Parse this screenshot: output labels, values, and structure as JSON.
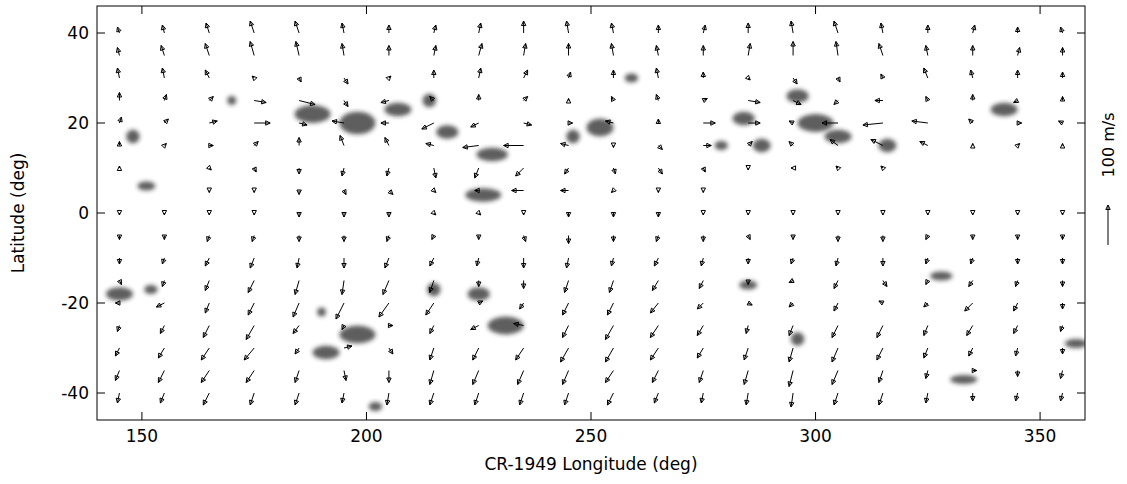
{
  "chart_data": {
    "type": "vector_field",
    "xlabel": "CR-1949 Longitude  (deg)",
    "ylabel": "Latitude  (deg)",
    "xlim": [
      140,
      360
    ],
    "ylim": [
      -46,
      46
    ],
    "xticks": [
      150,
      200,
      250,
      300,
      350
    ],
    "yticks": [
      -40,
      -20,
      0,
      20,
      40
    ],
    "scale": {
      "value": 100,
      "label": "100 m/s"
    },
    "x": [
      145,
      155,
      165,
      175,
      185,
      195,
      205,
      215,
      225,
      235,
      245,
      255,
      265,
      275,
      285,
      295,
      305,
      315,
      325,
      335,
      345,
      355
    ],
    "y": [
      40,
      35,
      30,
      25,
      20,
      15,
      10,
      5,
      0,
      -5,
      -10,
      -15,
      -20,
      -25,
      -30,
      -35,
      -40
    ],
    "u": [
      [
        -5,
        -5,
        -8,
        -10,
        -10,
        -5,
        0,
        5,
        5,
        0,
        -5,
        -5,
        0,
        5,
        0,
        -5,
        -10,
        -5,
        0,
        5,
        0,
        -5
      ],
      [
        -5,
        -8,
        -10,
        -10,
        -8,
        -5,
        0,
        5,
        8,
        5,
        0,
        -5,
        -5,
        0,
        5,
        0,
        -5,
        -10,
        -5,
        0,
        5,
        0
      ],
      [
        -5,
        -5,
        -10,
        -5,
        5,
        10,
        5,
        0,
        5,
        10,
        5,
        0,
        -5,
        0,
        5,
        10,
        5,
        -5,
        -10,
        -5,
        0,
        0
      ],
      [
        0,
        5,
        10,
        30,
        40,
        10,
        -20,
        -10,
        0,
        10,
        0,
        -5,
        -5,
        10,
        30,
        20,
        -10,
        -20,
        -5,
        0,
        -10,
        0
      ],
      [
        5,
        10,
        20,
        40,
        20,
        -30,
        -20,
        -30,
        -20,
        20,
        10,
        -20,
        0,
        30,
        30,
        -10,
        -40,
        -50,
        -40,
        -10,
        10,
        -10
      ],
      [
        0,
        5,
        10,
        10,
        0,
        -10,
        -10,
        -20,
        -40,
        -50,
        -20,
        0,
        10,
        20,
        10,
        -10,
        -20,
        -30,
        -20,
        0,
        5,
        0
      ],
      [
        0,
        0,
        5,
        5,
        0,
        -5,
        -5,
        5,
        -10,
        -20,
        -10,
        5,
        10,
        5,
        0,
        -5,
        -5,
        -5,
        0,
        0,
        0,
        0
      ],
      [
        0,
        0,
        0,
        0,
        0,
        5,
        10,
        5,
        -10,
        -30,
        -20,
        -5,
        0,
        0,
        0,
        0,
        0,
        0,
        0,
        0,
        0,
        0
      ],
      [
        0,
        0,
        0,
        0,
        0,
        0,
        0,
        5,
        5,
        0,
        0,
        0,
        0,
        0,
        0,
        0,
        0,
        0,
        0,
        0,
        0,
        0
      ],
      [
        0,
        0,
        -5,
        -5,
        0,
        0,
        -5,
        -5,
        0,
        5,
        0,
        0,
        -5,
        0,
        5,
        0,
        0,
        0,
        -5,
        0,
        0,
        0
      ],
      [
        0,
        -5,
        -10,
        -10,
        -5,
        0,
        -10,
        -10,
        -5,
        0,
        -5,
        -5,
        -10,
        -5,
        0,
        -5,
        -5,
        0,
        -5,
        -5,
        0,
        0
      ],
      [
        5,
        -5,
        -10,
        -15,
        -10,
        -5,
        -15,
        -10,
        0,
        0,
        -10,
        -10,
        -15,
        -10,
        0,
        -10,
        -10,
        10,
        -5,
        -10,
        -5,
        0
      ],
      [
        -10,
        -20,
        -10,
        -15,
        -15,
        -20,
        -25,
        -20,
        10,
        -10,
        -15,
        -15,
        -20,
        -15,
        10,
        -10,
        -10,
        -10,
        -10,
        -20,
        -10,
        0
      ],
      [
        -5,
        -10,
        -15,
        -20,
        -15,
        -5,
        10,
        -10,
        -20,
        -25,
        -15,
        -20,
        -20,
        -15,
        -5,
        -10,
        -15,
        -15,
        -10,
        -15,
        -10,
        -5
      ],
      [
        -10,
        -15,
        -20,
        -25,
        -10,
        20,
        10,
        -10,
        -15,
        -20,
        -20,
        -20,
        -20,
        -15,
        -10,
        -10,
        -15,
        -15,
        -10,
        -10,
        -5,
        0
      ],
      [
        -10,
        -15,
        -20,
        -20,
        -10,
        5,
        0,
        -10,
        -15,
        -15,
        -15,
        -20,
        -15,
        -10,
        -10,
        -10,
        -15,
        -10,
        -5,
        10,
        0,
        -5
      ],
      [
        -5,
        -10,
        -15,
        -10,
        -10,
        -5,
        -5,
        -10,
        -10,
        -10,
        -10,
        -15,
        -10,
        -5,
        -5,
        -5,
        -10,
        -10,
        -5,
        0,
        -5,
        -5
      ]
    ],
    "v": [
      [
        15,
        20,
        25,
        30,
        30,
        25,
        20,
        20,
        25,
        30,
        30,
        25,
        20,
        20,
        25,
        30,
        30,
        25,
        20,
        20,
        15,
        15
      ],
      [
        20,
        25,
        30,
        35,
        35,
        30,
        25,
        25,
        30,
        30,
        30,
        30,
        25,
        25,
        30,
        35,
        35,
        30,
        25,
        25,
        20,
        20
      ],
      [
        25,
        25,
        20,
        5,
        -10,
        -15,
        5,
        20,
        25,
        20,
        15,
        20,
        25,
        15,
        -5,
        -15,
        -10,
        10,
        25,
        20,
        20,
        15
      ],
      [
        20,
        15,
        10,
        -5,
        -10,
        -15,
        -5,
        10,
        15,
        10,
        5,
        10,
        15,
        5,
        -5,
        -10,
        -10,
        0,
        10,
        15,
        -5,
        10
      ],
      [
        15,
        10,
        5,
        0,
        -5,
        5,
        0,
        -15,
        -10,
        -5,
        0,
        5,
        10,
        0,
        0,
        5,
        0,
        -5,
        5,
        10,
        0,
        5
      ],
      [
        10,
        5,
        0,
        10,
        20,
        25,
        20,
        5,
        -5,
        0,
        5,
        -5,
        -10,
        0,
        10,
        10,
        15,
        15,
        10,
        5,
        5,
        5
      ],
      [
        5,
        0,
        -5,
        -10,
        -15,
        -20,
        -20,
        -25,
        -25,
        -20,
        -15,
        -15,
        -15,
        -10,
        -5,
        0,
        5,
        5,
        0,
        0,
        0,
        0
      ],
      [
        0,
        0,
        -5,
        -5,
        -10,
        -10,
        -10,
        -5,
        0,
        0,
        0,
        -5,
        -5,
        -5,
        0,
        0,
        0,
        0,
        0,
        0,
        0,
        0
      ],
      [
        -5,
        -5,
        -5,
        -5,
        -10,
        -10,
        -10,
        -5,
        -5,
        -5,
        -10,
        -10,
        -10,
        -5,
        -5,
        -5,
        -5,
        -5,
        -5,
        -5,
        -5,
        -5
      ],
      [
        -10,
        -10,
        -15,
        -15,
        -15,
        -15,
        -15,
        -10,
        -10,
        -15,
        -20,
        -15,
        -15,
        -15,
        -10,
        -10,
        -15,
        -15,
        -10,
        -10,
        -10,
        -10
      ],
      [
        -15,
        -15,
        -20,
        -25,
        -25,
        -25,
        -25,
        -20,
        -20,
        -25,
        -25,
        -20,
        -20,
        -20,
        -15,
        -15,
        -20,
        -20,
        -15,
        -15,
        -15,
        -15
      ],
      [
        -10,
        -15,
        -25,
        -30,
        -35,
        -35,
        -35,
        -30,
        -15,
        -20,
        -30,
        -30,
        -25,
        -20,
        -10,
        -5,
        -20,
        -15,
        -10,
        -15,
        -15,
        -15
      ],
      [
        0,
        -10,
        -25,
        -30,
        -35,
        -40,
        -35,
        -30,
        5,
        -15,
        -30,
        -30,
        -25,
        -15,
        -5,
        -10,
        -20,
        5,
        -10,
        -20,
        -20,
        -15
      ],
      [
        -15,
        -20,
        -30,
        -35,
        -20,
        -10,
        0,
        -20,
        -10,
        5,
        -30,
        -35,
        -30,
        -25,
        -20,
        -25,
        -30,
        -30,
        -25,
        -25,
        -20,
        -15
      ],
      [
        -20,
        -25,
        -30,
        -30,
        -15,
        5,
        -15,
        -30,
        -30,
        -30,
        -35,
        -35,
        -30,
        -25,
        -30,
        -35,
        -35,
        -30,
        -25,
        -20,
        -20,
        -15
      ],
      [
        -25,
        -30,
        -30,
        -30,
        -30,
        -25,
        -30,
        -35,
        -35,
        -35,
        -35,
        -30,
        -30,
        -30,
        -35,
        -40,
        -35,
        -30,
        -20,
        0,
        -15,
        -20
      ],
      [
        -25,
        -25,
        -30,
        -30,
        -30,
        -25,
        -30,
        -30,
        -30,
        -30,
        -30,
        -30,
        -25,
        -25,
        -30,
        -35,
        -30,
        -30,
        -25,
        -20,
        -20,
        -20
      ]
    ],
    "regions": [
      {
        "lon": 145,
        "lat": -18,
        "width": 6,
        "height": 3
      },
      {
        "lon": 152,
        "lat": -17,
        "width": 3,
        "height": 2
      },
      {
        "lon": 151,
        "lat": 6,
        "width": 4,
        "height": 2
      },
      {
        "lon": 148,
        "lat": 17,
        "width": 3,
        "height": 3
      },
      {
        "lon": 188,
        "lat": 22,
        "width": 8,
        "height": 4
      },
      {
        "lon": 198,
        "lat": 20,
        "width": 8,
        "height": 5
      },
      {
        "lon": 207,
        "lat": 23,
        "width": 6,
        "height": 3
      },
      {
        "lon": 214,
        "lat": 25,
        "width": 3,
        "height": 3
      },
      {
        "lon": 218,
        "lat": 18,
        "width": 5,
        "height": 3
      },
      {
        "lon": 228,
        "lat": 13,
        "width": 7,
        "height": 3
      },
      {
        "lon": 226,
        "lat": 4,
        "width": 8,
        "height": 3
      },
      {
        "lon": 215,
        "lat": -17,
        "width": 3,
        "height": 3
      },
      {
        "lon": 225,
        "lat": -18,
        "width": 5,
        "height": 3
      },
      {
        "lon": 231,
        "lat": -25,
        "width": 8,
        "height": 4
      },
      {
        "lon": 198,
        "lat": -27,
        "width": 8,
        "height": 4
      },
      {
        "lon": 191,
        "lat": -31,
        "width": 6,
        "height": 3
      },
      {
        "lon": 202,
        "lat": -43,
        "width": 3,
        "height": 2
      },
      {
        "lon": 252,
        "lat": 19,
        "width": 6,
        "height": 4
      },
      {
        "lon": 246,
        "lat": 17,
        "width": 3,
        "height": 3
      },
      {
        "lon": 259,
        "lat": 30,
        "width": 3,
        "height": 2
      },
      {
        "lon": 284,
        "lat": 21,
        "width": 5,
        "height": 3
      },
      {
        "lon": 279,
        "lat": 15,
        "width": 3,
        "height": 2
      },
      {
        "lon": 288,
        "lat": 15,
        "width": 4,
        "height": 3
      },
      {
        "lon": 296,
        "lat": 26,
        "width": 5,
        "height": 3
      },
      {
        "lon": 300,
        "lat": 20,
        "width": 8,
        "height": 4
      },
      {
        "lon": 305,
        "lat": 17,
        "width": 6,
        "height": 3
      },
      {
        "lon": 316,
        "lat": 15,
        "width": 4,
        "height": 3
      },
      {
        "lon": 342,
        "lat": 23,
        "width": 6,
        "height": 3
      },
      {
        "lon": 328,
        "lat": -14,
        "width": 5,
        "height": 2
      },
      {
        "lon": 333,
        "lat": -37,
        "width": 6,
        "height": 2
      },
      {
        "lon": 358,
        "lat": -29,
        "width": 5,
        "height": 2
      },
      {
        "lon": 285,
        "lat": -16,
        "width": 4,
        "height": 2
      },
      {
        "lon": 296,
        "lat": -28,
        "width": 3,
        "height": 3
      },
      {
        "lon": 190,
        "lat": -22,
        "width": 2,
        "height": 2
      },
      {
        "lon": 170,
        "lat": 25,
        "width": 2,
        "height": 2
      }
    ]
  }
}
